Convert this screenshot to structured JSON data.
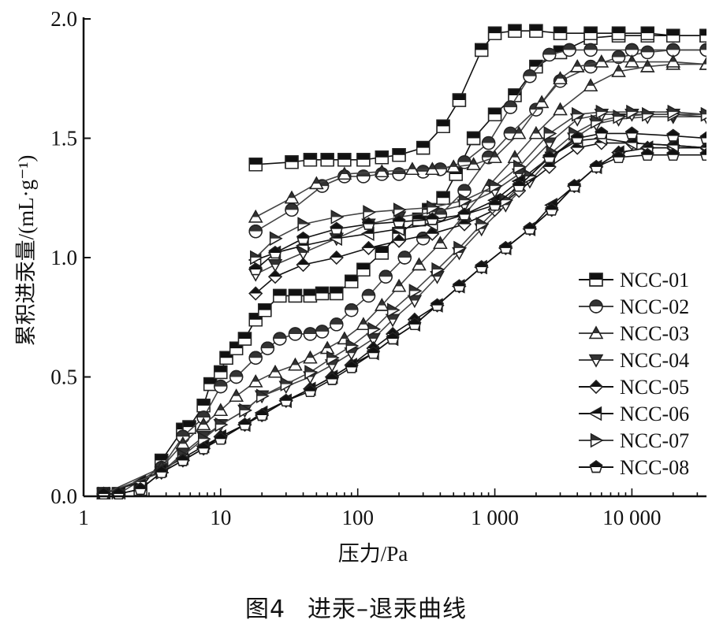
{
  "figure": {
    "caption_label": "图4",
    "caption_text": "进汞–退汞曲线"
  },
  "chart_data": {
    "type": "line",
    "title": "进汞–退汞曲线",
    "xlabel": "压力/Pa",
    "ylabel": "累积进汞量/(mL·g⁻¹)",
    "xscale": "log",
    "xlim": [
      1,
      35000
    ],
    "ylim": [
      0.0,
      2.0
    ],
    "xticks": [
      1,
      10,
      100,
      1000,
      10000
    ],
    "xtick_labels": [
      "1",
      "10",
      "100",
      "1 000",
      "10 000"
    ],
    "yticks": [
      0.0,
      0.5,
      1.0,
      1.5,
      2.0
    ],
    "ytick_labels": [
      "0.0",
      "0.5",
      "1.0",
      "1.5",
      "2.0"
    ],
    "grid": false,
    "legend_position": "lower right",
    "marker_style": "half-filled (top filled, bottom open)",
    "series": [
      {
        "name": "NCC-01",
        "marker": "square",
        "intrusion": {
          "x": [
            1.4,
            1.8,
            2.6,
            3.7,
            5.3,
            5.9,
            7.5,
            8.4,
            10,
            11,
            13,
            15,
            18,
            21,
            27,
            35,
            45,
            55,
            70,
            90,
            110,
            150,
            200,
            280,
            330,
            420,
            520,
            700,
            1000,
            1400,
            2000,
            3000,
            5000,
            8000,
            13000,
            20000,
            35000
          ],
          "y": [
            0.01,
            0.01,
            0.03,
            0.15,
            0.28,
            0.29,
            0.38,
            0.47,
            0.52,
            0.58,
            0.62,
            0.66,
            0.74,
            0.78,
            0.84,
            0.84,
            0.84,
            0.85,
            0.85,
            0.9,
            0.95,
            1.02,
            1.1,
            1.16,
            1.2,
            1.25,
            1.35,
            1.5,
            1.6,
            1.68,
            1.8,
            1.86,
            1.92,
            1.93,
            1.93,
            1.93,
            1.93
          ]
        },
        "extrusion": {
          "x": [
            35000,
            20000,
            13000,
            8000,
            5000,
            3000,
            2000,
            1400,
            1000,
            800,
            550,
            420,
            300,
            200,
            150,
            110,
            80,
            60,
            45,
            33,
            18
          ],
          "y": [
            1.93,
            1.93,
            1.94,
            1.94,
            1.94,
            1.94,
            1.95,
            1.95,
            1.94,
            1.87,
            1.66,
            1.55,
            1.46,
            1.43,
            1.42,
            1.41,
            1.41,
            1.41,
            1.41,
            1.4,
            1.39
          ]
        }
      },
      {
        "name": "NCC-02",
        "marker": "circle",
        "intrusion": {
          "x": [
            1.4,
            1.8,
            3.7,
            5.3,
            7.5,
            10,
            13,
            18,
            22,
            27,
            35,
            45,
            55,
            70,
            90,
            120,
            160,
            220,
            300,
            400,
            600,
            900,
            1300,
            2000,
            3000,
            5000,
            8000,
            13000,
            20000,
            35000
          ],
          "y": [
            0.01,
            0.01,
            0.12,
            0.25,
            0.33,
            0.46,
            0.5,
            0.58,
            0.62,
            0.66,
            0.68,
            0.68,
            0.69,
            0.72,
            0.78,
            0.84,
            0.92,
            1.0,
            1.08,
            1.18,
            1.28,
            1.42,
            1.52,
            1.62,
            1.74,
            1.8,
            1.84,
            1.86,
            1.87,
            1.87
          ]
        },
        "extrusion": {
          "x": [
            35000,
            20000,
            10000,
            5000,
            3500,
            2500,
            1800,
            1300,
            900,
            600,
            400,
            300,
            200,
            150,
            110,
            80,
            55,
            33,
            18
          ],
          "y": [
            1.87,
            1.87,
            1.87,
            1.87,
            1.87,
            1.85,
            1.76,
            1.63,
            1.48,
            1.4,
            1.37,
            1.36,
            1.35,
            1.35,
            1.34,
            1.34,
            1.3,
            1.2,
            1.11
          ]
        }
      },
      {
        "name": "NCC-03",
        "marker": "triangle-up",
        "intrusion": {
          "x": [
            1.4,
            3.7,
            5.3,
            7.5,
            10,
            13,
            18,
            25,
            35,
            45,
            60,
            80,
            110,
            150,
            200,
            280,
            400,
            600,
            900,
            1400,
            2000,
            3000,
            5000,
            8000,
            13000,
            20000,
            35000
          ],
          "y": [
            0.01,
            0.12,
            0.22,
            0.3,
            0.36,
            0.42,
            0.48,
            0.52,
            0.55,
            0.58,
            0.62,
            0.66,
            0.72,
            0.8,
            0.88,
            0.97,
            1.06,
            1.18,
            1.3,
            1.42,
            1.52,
            1.62,
            1.72,
            1.78,
            1.8,
            1.81,
            1.81
          ]
        },
        "extrusion": {
          "x": [
            35000,
            20000,
            10000,
            6000,
            4000,
            3000,
            2200,
            1500,
            1000,
            700,
            500,
            350,
            250,
            150,
            80,
            50,
            33,
            18
          ],
          "y": [
            1.81,
            1.82,
            1.82,
            1.82,
            1.8,
            1.75,
            1.65,
            1.52,
            1.42,
            1.39,
            1.38,
            1.37,
            1.37,
            1.36,
            1.35,
            1.31,
            1.25,
            1.17
          ]
        }
      },
      {
        "name": "NCC-04",
        "marker": "triangle-down",
        "intrusion": {
          "x": [
            1.4,
            3.7,
            5.3,
            7.5,
            10,
            15,
            20,
            30,
            45,
            65,
            90,
            130,
            180,
            260,
            380,
            550,
            800,
            1200,
            1800,
            2600,
            3800,
            5500,
            8000,
            13000,
            20000,
            35000
          ],
          "y": [
            0.01,
            0.1,
            0.18,
            0.25,
            0.3,
            0.36,
            0.42,
            0.46,
            0.5,
            0.55,
            0.6,
            0.66,
            0.74,
            0.82,
            0.92,
            1.02,
            1.12,
            1.22,
            1.32,
            1.42,
            1.5,
            1.56,
            1.58,
            1.59,
            1.59,
            1.59
          ]
        },
        "extrusion": {
          "x": [
            35000,
            20000,
            10000,
            6000,
            4000,
            2500,
            1500,
            1000,
            600,
            350,
            200,
            120,
            70,
            40,
            25,
            18
          ],
          "y": [
            1.59,
            1.6,
            1.6,
            1.6,
            1.58,
            1.48,
            1.35,
            1.28,
            1.22,
            1.19,
            1.17,
            1.14,
            1.08,
            1.02,
            0.97,
            0.93
          ]
        }
      },
      {
        "name": "NCC-05",
        "marker": "diamond",
        "intrusion": {
          "x": [
            1.4,
            1.8,
            2.6,
            3.7,
            5.3,
            7.5,
            10,
            15,
            20,
            30,
            45,
            65,
            90,
            130,
            180,
            260,
            380,
            550,
            800,
            1200,
            1800,
            2600,
            3800,
            5500,
            8000,
            13000,
            20000,
            35000
          ],
          "y": [
            0.01,
            0.01,
            0.03,
            0.1,
            0.15,
            0.2,
            0.25,
            0.3,
            0.34,
            0.4,
            0.45,
            0.5,
            0.55,
            0.62,
            0.68,
            0.74,
            0.8,
            0.88,
            0.96,
            1.04,
            1.12,
            1.2,
            1.3,
            1.38,
            1.44,
            1.46,
            1.46,
            1.46
          ]
        },
        "extrusion": {
          "x": [
            35000,
            20000,
            10000,
            6000,
            4000,
            2500,
            1500,
            1000,
            600,
            350,
            200,
            120,
            70,
            40,
            25,
            18
          ],
          "y": [
            1.46,
            1.47,
            1.48,
            1.48,
            1.46,
            1.38,
            1.28,
            1.2,
            1.14,
            1.1,
            1.07,
            1.04,
            1.0,
            0.97,
            0.92,
            0.85
          ]
        }
      },
      {
        "name": "NCC-06",
        "marker": "triangle-left",
        "intrusion": {
          "x": [
            1.4,
            2.6,
            3.7,
            5.3,
            7.5,
            10,
            15,
            20,
            30,
            45,
            65,
            90,
            130,
            180,
            260,
            380,
            550,
            800,
            1200,
            1800,
            2600,
            3800,
            5500,
            8000,
            13000,
            20000,
            35000
          ],
          "y": [
            0.01,
            0.06,
            0.11,
            0.16,
            0.21,
            0.25,
            0.3,
            0.35,
            0.4,
            0.45,
            0.5,
            0.55,
            0.6,
            0.66,
            0.72,
            0.8,
            0.88,
            0.96,
            1.04,
            1.12,
            1.22,
            1.3,
            1.38,
            1.44,
            1.46,
            1.46,
            1.46
          ]
        },
        "extrusion": {
          "x": [
            35000,
            20000,
            10000,
            6000,
            4000,
            2500,
            1500,
            1000,
            600,
            350,
            200,
            120,
            70,
            40,
            25,
            18
          ],
          "y": [
            1.46,
            1.47,
            1.48,
            1.5,
            1.49,
            1.42,
            1.32,
            1.24,
            1.18,
            1.14,
            1.12,
            1.1,
            1.08,
            1.05,
            1.02,
            0.99
          ]
        }
      },
      {
        "name": "NCC-07",
        "marker": "triangle-right",
        "intrusion": {
          "x": [
            1.4,
            3.7,
            5.3,
            7.5,
            10,
            15,
            20,
            30,
            45,
            65,
            90,
            130,
            180,
            260,
            380,
            550,
            800,
            1200,
            1800,
            2600,
            3800,
            5500,
            8000,
            13000,
            20000,
            35000
          ],
          "y": [
            0.01,
            0.1,
            0.17,
            0.24,
            0.3,
            0.36,
            0.42,
            0.47,
            0.52,
            0.58,
            0.63,
            0.7,
            0.78,
            0.86,
            0.95,
            1.04,
            1.14,
            1.24,
            1.34,
            1.44,
            1.52,
            1.57,
            1.59,
            1.6,
            1.6,
            1.6
          ]
        },
        "extrusion": {
          "x": [
            35000,
            20000,
            10000,
            6000,
            4000,
            2500,
            1500,
            1000,
            600,
            350,
            200,
            120,
            70,
            40,
            25,
            18
          ],
          "y": [
            1.6,
            1.61,
            1.61,
            1.61,
            1.6,
            1.52,
            1.38,
            1.3,
            1.24,
            1.21,
            1.2,
            1.19,
            1.17,
            1.14,
            1.08,
            1.0
          ]
        }
      },
      {
        "name": "NCC-08",
        "marker": "pentagon",
        "intrusion": {
          "x": [
            1.4,
            1.8,
            2.6,
            3.7,
            5.3,
            7.5,
            10,
            15,
            20,
            30,
            45,
            65,
            90,
            130,
            180,
            260,
            380,
            550,
            800,
            1200,
            1800,
            2600,
            3800,
            5500,
            8000,
            13000,
            20000,
            35000
          ],
          "y": [
            0.01,
            0.01,
            0.03,
            0.1,
            0.15,
            0.2,
            0.24,
            0.3,
            0.34,
            0.4,
            0.44,
            0.49,
            0.54,
            0.6,
            0.66,
            0.72,
            0.8,
            0.88,
            0.96,
            1.04,
            1.12,
            1.2,
            1.3,
            1.38,
            1.42,
            1.43,
            1.43,
            1.43
          ]
        },
        "extrusion": {
          "x": [
            35000,
            20000,
            10000,
            6000,
            4000,
            2500,
            1500,
            1000,
            600,
            350,
            200,
            120,
            70,
            40,
            25,
            18
          ],
          "y": [
            1.5,
            1.51,
            1.52,
            1.52,
            1.5,
            1.42,
            1.3,
            1.22,
            1.18,
            1.16,
            1.15,
            1.14,
            1.12,
            1.08,
            1.02,
            0.95
          ]
        }
      }
    ]
  }
}
